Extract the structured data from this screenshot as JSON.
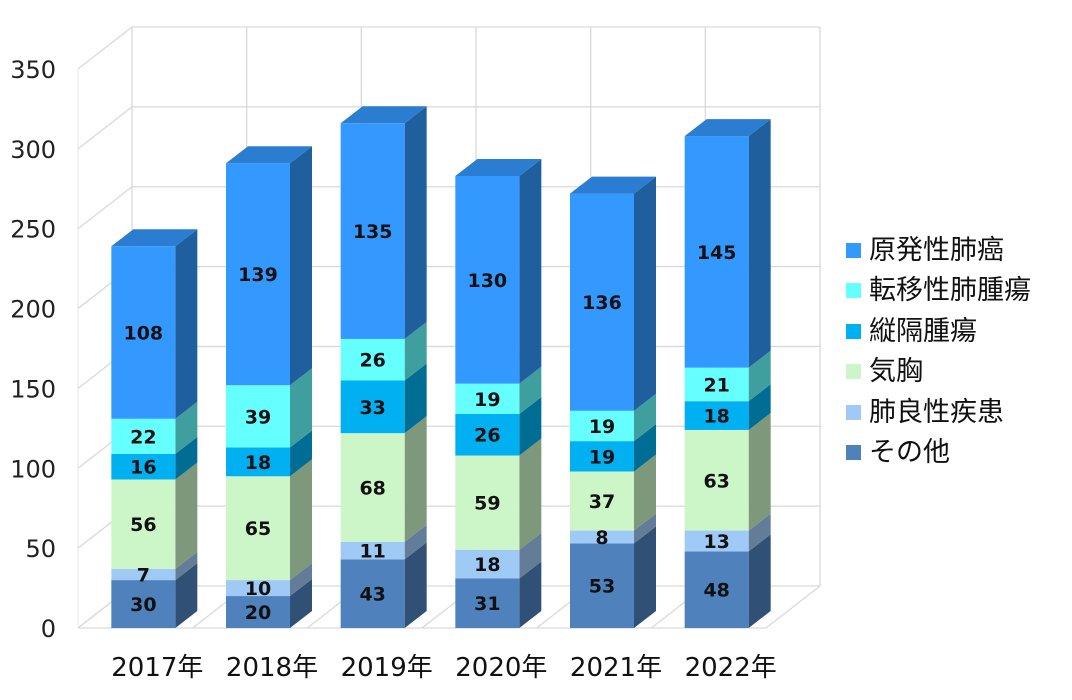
{
  "chart_data": {
    "type": "bar",
    "stacked": true,
    "three_d": true,
    "categories": [
      "2017年",
      "2018年",
      "2019年",
      "2020年",
      "2021年",
      "2022年"
    ],
    "ylim": [
      0,
      350
    ],
    "yticks": [
      "0",
      "50",
      "100",
      "150",
      "200",
      "250",
      "300",
      "350"
    ],
    "grid": true,
    "legend_position": "right",
    "series": [
      {
        "name": "その他",
        "color": "#4f81bd",
        "values": [
          30,
          20,
          43,
          31,
          53,
          48
        ]
      },
      {
        "name": "肺良性疾患",
        "color": "#9fcaf5",
        "values": [
          7,
          10,
          11,
          18,
          8,
          13
        ]
      },
      {
        "name": "気胸",
        "color": "#ccf5c8",
        "values": [
          56,
          65,
          68,
          59,
          37,
          63
        ]
      },
      {
        "name": "縦隔腫瘍",
        "color": "#00b0f0",
        "values": [
          16,
          18,
          33,
          26,
          19,
          18
        ]
      },
      {
        "name": "転移性肺腫瘍",
        "color": "#66ffff",
        "values": [
          22,
          39,
          26,
          19,
          19,
          21
        ]
      },
      {
        "name": "原発性肺癌",
        "color": "#3399ff",
        "values": [
          108,
          139,
          135,
          130,
          136,
          145
        ]
      }
    ],
    "legend_order": [
      "原発性肺癌",
      "転移性肺腫瘍",
      "縦隔腫瘍",
      "気胸",
      "肺良性疾患",
      "その他"
    ]
  }
}
